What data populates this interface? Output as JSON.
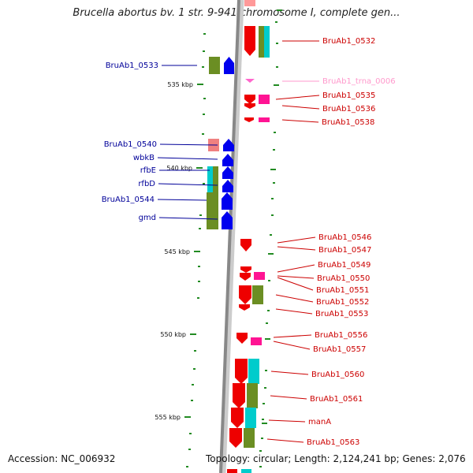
{
  "title": "Brucella abortus bv. 1 str. 9-941 chromosome I, complete gen...",
  "footer": {
    "accession": "Accession: NC_006932",
    "topology": "Topology: circular; Length: 2,124,241 bp; Genes: 2,076"
  },
  "colors": {
    "cds_forward": "#0000ee",
    "cds_reverse": "#ee0000",
    "trna": "#ff66cc",
    "label_left": "#000099",
    "label_right": "#cc0000",
    "label_trna": "#ff99cc",
    "cog_green": "#6b8e23",
    "cog_cyan": "#00cccc",
    "cog_magenta": "#ff1493",
    "cog_salmon": "#f08080",
    "backbone": "#888888",
    "tick": "#228b22"
  },
  "ruler": [
    {
      "label": "535 kbp"
    },
    {
      "label": "540 kbp"
    },
    {
      "label": "545 kbp"
    },
    {
      "label": "550 kbp"
    },
    {
      "label": "555 kbp"
    }
  ],
  "genes_left": [
    {
      "name": "BruAb1_0533"
    },
    {
      "name": "BruAb1_0540"
    },
    {
      "name": "wbkB"
    },
    {
      "name": "rfbE"
    },
    {
      "name": "rfbD"
    },
    {
      "name": "BruAb1_0544"
    },
    {
      "name": "gmd"
    }
  ],
  "genes_right": [
    {
      "name": "BruAb1_0532"
    },
    {
      "name": "BruAb1_trna_0006"
    },
    {
      "name": "BruAb1_0535"
    },
    {
      "name": "BruAb1_0536"
    },
    {
      "name": "BruAb1_0538"
    },
    {
      "name": "BruAb1_0546"
    },
    {
      "name": "BruAb1_0547"
    },
    {
      "name": "BruAb1_0549"
    },
    {
      "name": "BruAb1_0550"
    },
    {
      "name": "BruAb1_0551"
    },
    {
      "name": "BruAb1_0552"
    },
    {
      "name": "BruAb1_0553"
    },
    {
      "name": "BruAb1_0556"
    },
    {
      "name": "BruAb1_0557"
    },
    {
      "name": "BruAb1_0560"
    },
    {
      "name": "BruAb1_0561"
    },
    {
      "name": "manA"
    },
    {
      "name": "BruAb1_0563"
    }
  ]
}
